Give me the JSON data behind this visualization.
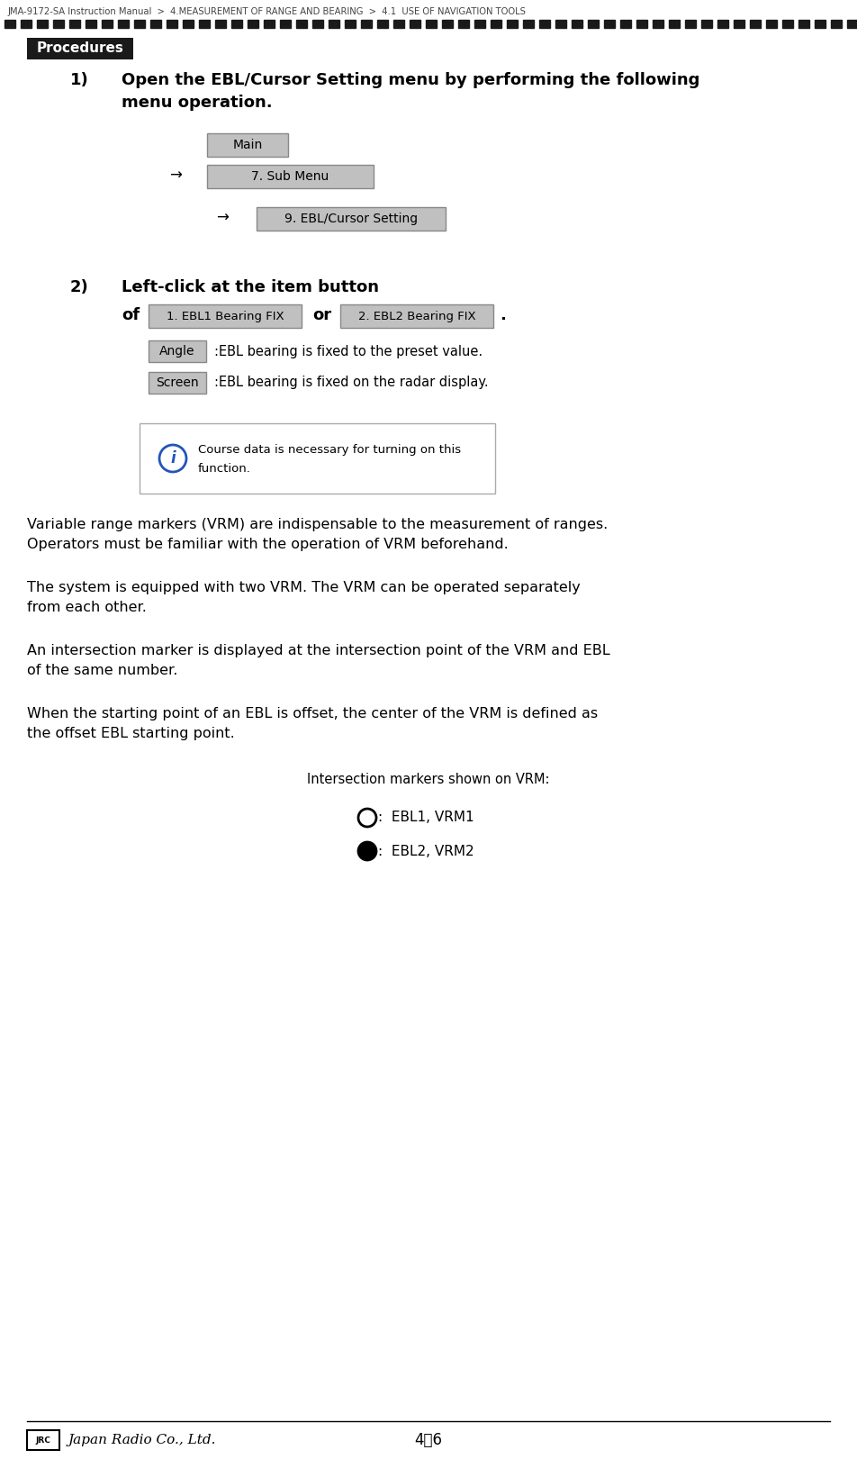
{
  "title_breadcrumb": "JMA-9172-SA Instruction Manual  >  4.MEASUREMENT OF RANGE AND BEARING  >  4.1  USE OF NAVIGATION TOOLS",
  "bg_color": "#ffffff",
  "procedures_label": "Procedures",
  "procedures_bg": "#1a1a1a",
  "procedures_text_color": "#ffffff",
  "step1_num": "1)",
  "step1_text_line1": "Open the EBL/Cursor Setting menu by performing the following",
  "step1_text_line2": "menu operation.",
  "btn_main": "Main",
  "btn_submenu": "7. Sub Menu",
  "btn_ebl": "9. EBL/Cursor Setting",
  "btn_color": "#c0c0c0",
  "btn_border": "#888888",
  "arrow": "→",
  "step2_num": "2)",
  "step2_text": "Left-click at the item button",
  "step2_of": "of",
  "step2_or": "or",
  "step2_period": ".",
  "btn_ebl1": "1. EBL1 Bearing FIX",
  "btn_ebl2": "2. EBL2 Bearing FIX",
  "btn_angle": "Angle",
  "btn_screen": "Screen",
  "angle_desc": ":EBL bearing is fixed to the preset value.",
  "screen_desc": ":EBL bearing is fixed on the radar display.",
  "info_text_line1": "Course data is necessary for turning on this",
  "info_text_line2": "function.",
  "info_border": "#888888",
  "para1_line1": "Variable range markers (VRM) are indispensable to the measurement of ranges.",
  "para1_line2": "Operators must be familiar with the operation of VRM beforehand.",
  "para2_line1": "The system is equipped with two VRM. The VRM can be operated separately",
  "para2_line2": "from each other.",
  "para3_line1": "An intersection marker is displayed at the intersection point of the VRM and EBL",
  "para3_line2": "of the same number.",
  "para4_line1": "When the starting point of an EBL is offset, the center of the VRM is defined as",
  "para4_line2": "the offset EBL starting point.",
  "intersection_title": "Intersection markers shown on VRM:",
  "vrm1_label": "EBL1, VRM1",
  "vrm2_label": "EBL2, VRM2",
  "footer_page": "4－6",
  "dashed_line_color": "#1a1a1a",
  "text_color": "#000000",
  "header_color": "#444444",
  "info_circle_color": "#2255bb"
}
